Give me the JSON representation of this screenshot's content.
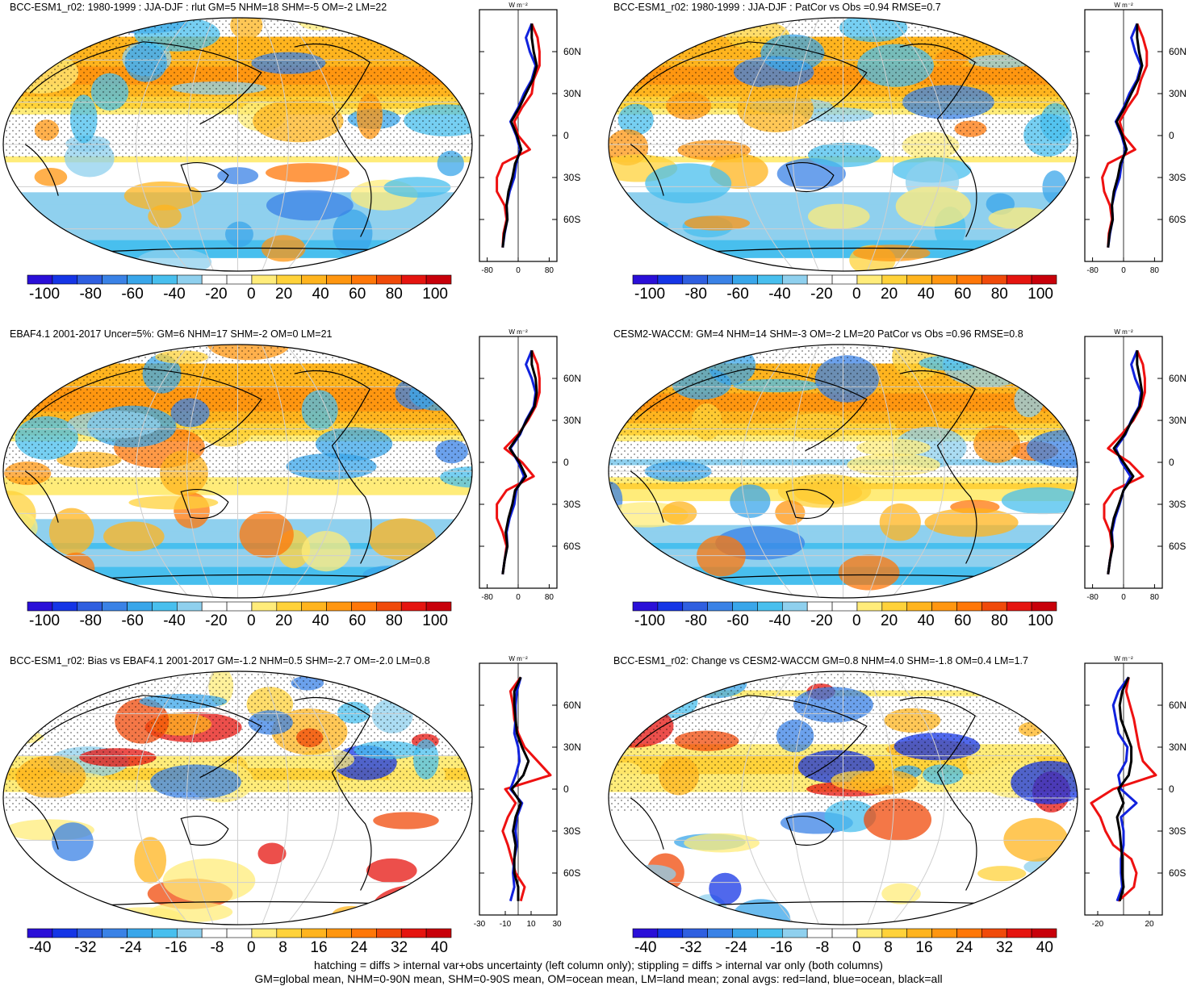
{
  "footer": {
    "line1": "hatching = diffs > internal var+obs uncertainty (left column only); stippling = diffs > internal var only (both columns)",
    "line2": "GM=global mean, NHM=0-90N mean, SHM=0-90S mean, OM=ocean mean, LM=land mean; zonal avgs: red=land, blue=ocean, black=all"
  },
  "units_label": "W m⁻²",
  "lat_labels": [
    "60N",
    "30N",
    "0",
    "30S",
    "60S"
  ],
  "colors": {
    "land": "#ee1111",
    "ocean": "#1122dd",
    "all": "#000000",
    "colormap": [
      "#2a0fd8",
      "#1535e6",
      "#2f5fe0",
      "#3a82e6",
      "#39a6ea",
      "#48bfee",
      "#8fd0ee",
      "#ffffff",
      "#ffffff",
      "#ffec7a",
      "#ffd23a",
      "#ffb41e",
      "#ff9610",
      "#ff7708",
      "#f04a0a",
      "#e5140f",
      "#c8000a"
    ]
  },
  "chart_data": [
    {
      "type": "map",
      "title": "BCC-ESM1_r02: 1980-1999 : JJA-DJF : rlut GM=5 NHM=18 SHM=-5 OM=-2 LM=22",
      "colorbar_labels": [
        "-100",
        "-80",
        "-60",
        "-40",
        "-20",
        "0",
        "20",
        "40",
        "60",
        "80",
        "100"
      ],
      "zonal_xticks": [
        "-80",
        "0",
        "80"
      ],
      "zonal_xlim": [
        -100,
        100
      ],
      "zonal_series": [
        {
          "color": "land",
          "lat": [
            -80,
            -70,
            -60,
            -50,
            -40,
            -30,
            -20,
            -10,
            0,
            10,
            20,
            30,
            40,
            50,
            60,
            70,
            80
          ],
          "values": [
            -40,
            -38,
            -30,
            -35,
            -55,
            -55,
            -40,
            30,
            0,
            -10,
            10,
            35,
            40,
            55,
            55,
            50,
            35
          ]
        },
        {
          "color": "ocean",
          "lat": [
            -80,
            -70,
            -60,
            -50,
            -40,
            -30,
            -20,
            -10,
            0,
            10,
            20,
            30,
            40,
            50,
            60,
            70,
            80
          ],
          "values": [
            -40,
            -35,
            -28,
            -30,
            -22,
            -10,
            -5,
            5,
            -5,
            -20,
            0,
            15,
            35,
            45,
            30,
            20,
            35
          ]
        },
        {
          "color": "all",
          "lat": [
            -80,
            -70,
            -60,
            -50,
            -40,
            -30,
            -20,
            -10,
            0,
            10,
            20,
            30,
            40,
            50,
            60,
            70,
            80
          ],
          "values": [
            -40,
            -36,
            -28,
            -30,
            -25,
            -15,
            -8,
            8,
            -3,
            -18,
            3,
            20,
            38,
            48,
            40,
            35,
            35
          ]
        }
      ]
    },
    {
      "type": "map",
      "title": "BCC-ESM1_r02: 1980-1999 : JJA-DJF : PatCor vs Obs =0.94 RMSE=0.7",
      "colorbar_labels": [
        "-100",
        "-80",
        "-60",
        "-40",
        "-20",
        "0",
        "20",
        "40",
        "60",
        "80",
        "100"
      ],
      "zonal_xticks": [
        "-80",
        "0",
        "80"
      ],
      "zonal_xlim": [
        -100,
        100
      ],
      "zonal_series": [
        {
          "color": "land",
          "lat": [
            -80,
            -70,
            -60,
            -50,
            -40,
            -30,
            -20,
            -10,
            0,
            10,
            20,
            30,
            40,
            50,
            60,
            70,
            80
          ],
          "values": [
            -40,
            -38,
            -30,
            -35,
            -50,
            -55,
            -40,
            30,
            0,
            -10,
            10,
            35,
            45,
            60,
            60,
            50,
            35
          ]
        },
        {
          "color": "ocean",
          "lat": [
            -80,
            -70,
            -60,
            -50,
            -40,
            -30,
            -20,
            -10,
            0,
            10,
            20,
            30,
            40,
            50,
            60,
            70,
            80
          ],
          "values": [
            -40,
            -35,
            -28,
            -30,
            -22,
            -10,
            -5,
            5,
            -5,
            -20,
            0,
            15,
            35,
            45,
            30,
            20,
            35
          ]
        },
        {
          "color": "all",
          "lat": [
            -80,
            -70,
            -60,
            -50,
            -40,
            -30,
            -20,
            -10,
            0,
            10,
            20,
            30,
            40,
            50,
            60,
            70,
            80
          ],
          "values": [
            -40,
            -36,
            -28,
            -30,
            -25,
            -15,
            -8,
            8,
            -3,
            -18,
            3,
            20,
            38,
            48,
            40,
            35,
            35
          ]
        }
      ]
    },
    {
      "type": "map",
      "title": "EBAF4.1 2001-2017 Uncer=5%: GM=6 NHM=17 SHM=-2 OM=0 LM=21",
      "colorbar_labels": [
        "-100",
        "-80",
        "-60",
        "-40",
        "-20",
        "0",
        "20",
        "40",
        "60",
        "80",
        "100"
      ],
      "zonal_xticks": [
        "-80",
        "0",
        "80"
      ],
      "zonal_xlim": [
        -100,
        100
      ],
      "zonal_series": [
        {
          "color": "land",
          "lat": [
            -80,
            -70,
            -60,
            -50,
            -40,
            -30,
            -20,
            -10,
            0,
            10,
            20,
            30,
            40,
            50,
            60,
            70,
            80
          ],
          "values": [
            -40,
            -35,
            -30,
            -40,
            -55,
            -55,
            -30,
            40,
            10,
            -35,
            0,
            25,
            45,
            55,
            55,
            50,
            35
          ]
        },
        {
          "color": "ocean",
          "lat": [
            -80,
            -70,
            -60,
            -50,
            -40,
            -30,
            -20,
            -10,
            0,
            10,
            20,
            30,
            40,
            50,
            60,
            70,
            80
          ],
          "values": [
            -40,
            -35,
            -28,
            -30,
            -22,
            -10,
            -5,
            15,
            0,
            -20,
            5,
            20,
            40,
            45,
            35,
            20,
            35
          ]
        },
        {
          "color": "all",
          "lat": [
            -80,
            -70,
            -60,
            -50,
            -40,
            -30,
            -20,
            -10,
            0,
            10,
            20,
            30,
            40,
            50,
            60,
            70,
            80
          ],
          "values": [
            -40,
            -35,
            -28,
            -32,
            -25,
            -15,
            -8,
            20,
            3,
            -22,
            3,
            22,
            42,
            48,
            45,
            35,
            35
          ]
        }
      ]
    },
    {
      "type": "map",
      "title": "CESM2-WACCM: GM=4 NHM=14 SHM=-3 OM=-2 LM=20 PatCor vs Obs =0.96 RMSE=0.8",
      "colorbar_labels": [
        "-100",
        "-80",
        "-60",
        "-40",
        "-20",
        "0",
        "20",
        "40",
        "60",
        "80",
        "100"
      ],
      "zonal_xticks": [
        "-80",
        "0",
        "80"
      ],
      "zonal_xlim": [
        -100,
        100
      ],
      "zonal_series": [
        {
          "color": "land",
          "lat": [
            -80,
            -70,
            -60,
            -50,
            -40,
            -30,
            -20,
            -10,
            0,
            10,
            20,
            30,
            40,
            50,
            60,
            70,
            80
          ],
          "values": [
            -40,
            -35,
            -30,
            -35,
            -50,
            -50,
            -25,
            50,
            15,
            -40,
            -5,
            25,
            45,
            55,
            55,
            50,
            35
          ]
        },
        {
          "color": "ocean",
          "lat": [
            -80,
            -70,
            -60,
            -50,
            -40,
            -30,
            -20,
            -10,
            0,
            10,
            20,
            30,
            40,
            50,
            60,
            70,
            80
          ],
          "values": [
            -40,
            -35,
            -28,
            -30,
            -22,
            -10,
            0,
            18,
            -5,
            -20,
            5,
            20,
            40,
            45,
            30,
            20,
            35
          ]
        },
        {
          "color": "all",
          "lat": [
            -80,
            -70,
            -60,
            -50,
            -40,
            -30,
            -20,
            -10,
            0,
            10,
            20,
            30,
            40,
            50,
            60,
            70,
            80
          ],
          "values": [
            -40,
            -35,
            -28,
            -32,
            -25,
            -12,
            0,
            25,
            0,
            -25,
            3,
            22,
            42,
            48,
            42,
            35,
            35
          ]
        }
      ]
    },
    {
      "type": "map",
      "title": "BCC-ESM1_r02: Bias vs EBAF4.1 2001-2017 GM=-1.2 NHM=0.5 SHM=-2.7 OM=-2.0 LM=0.8",
      "colorbar_labels": [
        "-40",
        "-32",
        "-24",
        "-16",
        "-8",
        "0",
        "8",
        "16",
        "24",
        "32",
        "40"
      ],
      "zonal_xticks": [
        "-30",
        "-10",
        "10",
        "30"
      ],
      "zonal_xlim": [
        -30,
        30
      ],
      "zonal_series": [
        {
          "color": "land",
          "lat": [
            -80,
            -70,
            -60,
            -50,
            -40,
            -30,
            -20,
            -10,
            0,
            10,
            20,
            30,
            40,
            50,
            60,
            70,
            80
          ],
          "values": [
            2,
            5,
            -2,
            -5,
            -8,
            -12,
            -8,
            -2,
            -10,
            25,
            15,
            5,
            0,
            -3,
            -4,
            -6,
            2
          ]
        },
        {
          "color": "ocean",
          "lat": [
            -80,
            -70,
            -60,
            -50,
            -40,
            -30,
            -20,
            -10,
            0,
            10,
            20,
            30,
            40,
            50,
            60,
            70,
            80
          ],
          "values": [
            -6,
            -3,
            -4,
            -3,
            -1,
            -2,
            -1,
            3,
            -6,
            -2,
            1,
            0,
            -3,
            -2,
            -2,
            -1,
            2
          ]
        },
        {
          "color": "all",
          "lat": [
            -80,
            -70,
            -60,
            -50,
            -40,
            -30,
            -20,
            -10,
            0,
            10,
            20,
            30,
            40,
            50,
            60,
            70,
            80
          ],
          "values": [
            0,
            0,
            -3,
            -3,
            -2,
            -4,
            -2,
            2,
            -5,
            4,
            8,
            3,
            -1,
            -2,
            -3,
            -3,
            2
          ]
        }
      ]
    },
    {
      "type": "map",
      "title": "BCC-ESM1_r02: Change vs CESM2-WACCM GM=0.8 NHM=4.0 SHM=-1.8 OM=0.4 LM=1.7",
      "colorbar_labels": [
        "-40",
        "-32",
        "-24",
        "-16",
        "-8",
        "0",
        "8",
        "16",
        "24",
        "32",
        "40"
      ],
      "zonal_xticks": [
        "-20",
        "20"
      ],
      "zonal_xlim": [
        -30,
        30
      ],
      "zonal_series": [
        {
          "color": "land",
          "lat": [
            -80,
            -70,
            -60,
            -50,
            -40,
            -30,
            -20,
            -10,
            0,
            10,
            20,
            30,
            40,
            50,
            60,
            70,
            80
          ],
          "values": [
            -4,
            8,
            10,
            6,
            -8,
            -14,
            -18,
            -25,
            -8,
            25,
            15,
            12,
            10,
            8,
            5,
            2,
            4
          ]
        },
        {
          "color": "ocean",
          "lat": [
            -80,
            -70,
            -60,
            -50,
            -40,
            -30,
            -20,
            -10,
            0,
            10,
            20,
            30,
            40,
            50,
            60,
            70,
            80
          ],
          "values": [
            -5,
            -1,
            -2,
            -2,
            0,
            0,
            -2,
            10,
            -2,
            -4,
            2,
            3,
            -4,
            -6,
            -8,
            -4,
            4
          ]
        },
        {
          "color": "all",
          "lat": [
            -80,
            -70,
            -60,
            -50,
            -40,
            -30,
            -20,
            -10,
            0,
            10,
            20,
            30,
            40,
            50,
            60,
            70,
            80
          ],
          "values": [
            -3,
            0,
            -1,
            -1,
            -2,
            -3,
            -5,
            0,
            -4,
            4,
            6,
            6,
            2,
            -2,
            -3,
            -1,
            4
          ]
        }
      ]
    }
  ]
}
